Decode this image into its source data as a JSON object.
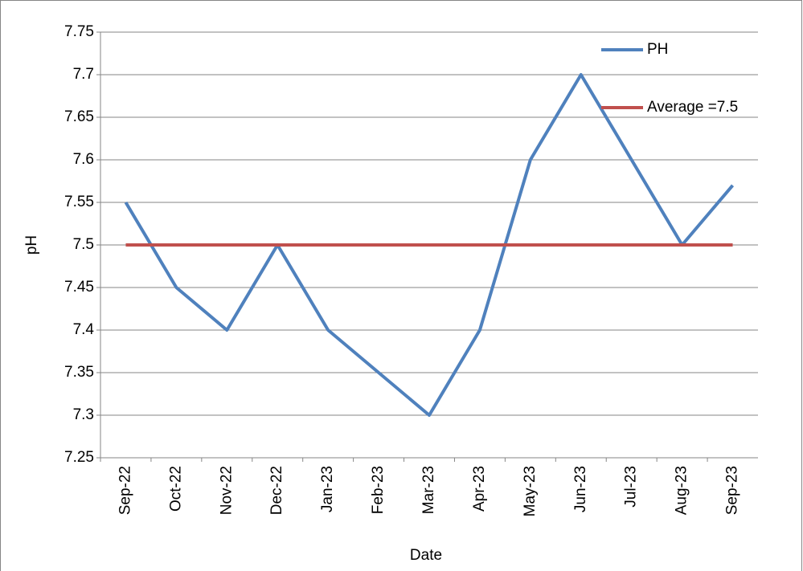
{
  "chart_data": {
    "type": "line",
    "x_label": "Date",
    "y_label": "pH",
    "categories": [
      "Sep-22",
      "Oct-22",
      "Nov-22",
      "Dec-22",
      "Jan-23",
      "Feb-23",
      "Mar-23",
      "Apr-23",
      "May-23",
      "Jun-23",
      "Jul-23",
      "Aug-23",
      "Sep-23"
    ],
    "series": [
      {
        "name": "PH",
        "color": "#4f81bd",
        "values": [
          7.55,
          7.45,
          7.4,
          7.5,
          7.4,
          7.35,
          7.3,
          7.4,
          7.6,
          7.7,
          7.6,
          7.5,
          7.57
        ]
      },
      {
        "name": "Average =7.5",
        "color": "#c0504d",
        "values": [
          7.5,
          7.5,
          7.5,
          7.5,
          7.5,
          7.5,
          7.5,
          7.5,
          7.5,
          7.5,
          7.5,
          7.5,
          7.5
        ]
      }
    ],
    "ylim": [
      7.25,
      7.75
    ],
    "yticks": [
      7.25,
      7.3,
      7.35,
      7.4,
      7.45,
      7.5,
      7.55,
      7.6,
      7.65,
      7.7,
      7.75
    ],
    "grid": true,
    "legend": "upper right"
  }
}
